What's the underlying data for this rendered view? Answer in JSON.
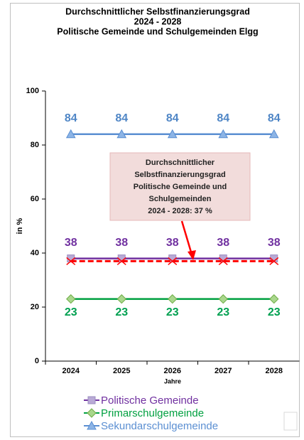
{
  "chart_data": {
    "type": "line",
    "title": [
      "Durchschnittlicher  Selbstfinanzierungsgrad",
      "2024 - 2028",
      "Politische Gemeinde und Schulgemeinden  Elgg"
    ],
    "categories": [
      "2024",
      "2025",
      "2026",
      "2027",
      "2028"
    ],
    "x_label": "Jahre",
    "y_label": "in %",
    "ylim": [
      0,
      100
    ],
    "yticks": [
      0,
      20,
      40,
      60,
      80,
      100
    ],
    "series": [
      {
        "name": "Politische Gemeinde",
        "color": "#7030a0",
        "marker": "square",
        "marker_color": "#b9aad6",
        "label_color": "#7030a0",
        "values": [
          38,
          38,
          38,
          38,
          38
        ]
      },
      {
        "name": "Primarschulgemeinde",
        "color": "#00a040",
        "marker": "diamond",
        "marker_color": "#a9d78c",
        "label_color": "#00a050",
        "values": [
          23,
          23,
          23,
          23,
          23
        ]
      },
      {
        "name": "Sekundarschulgemeinde",
        "color": "#5b8fd2",
        "marker": "triangle",
        "marker_color": "#8cb4e6",
        "label_color": "#4f86c6",
        "values": [
          84,
          84,
          84,
          84,
          84
        ]
      }
    ],
    "reference_line": {
      "color": "#ff0000",
      "values": [
        37,
        37,
        37,
        37,
        37
      ]
    },
    "annotation": [
      "Durchschnittlicher",
      "Selbstfinanzierungsgrad",
      "Politische Gemeinde und",
      "Schulgemeinden",
      "2024 - 2028: 37 %"
    ]
  }
}
